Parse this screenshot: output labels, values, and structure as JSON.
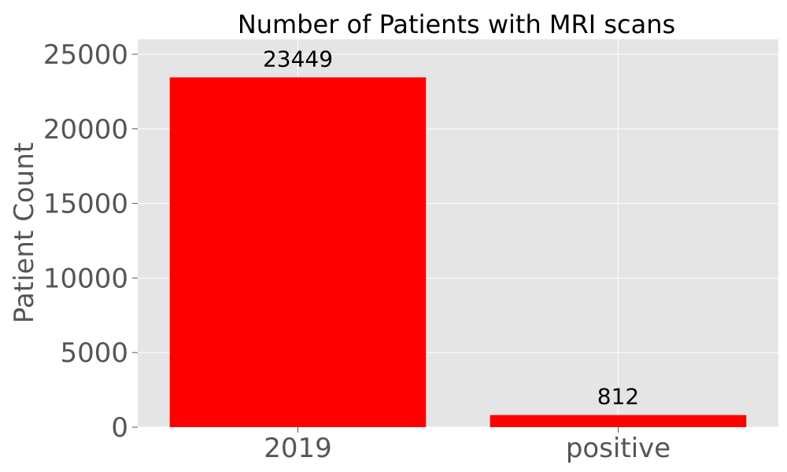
{
  "chart_data": {
    "type": "bar",
    "title": "Number of Patients with MRI scans",
    "xlabel": "",
    "ylabel": "Patient Count",
    "categories": [
      "2019",
      "positive"
    ],
    "values": [
      23449,
      812
    ],
    "data_labels": [
      "23449",
      "812"
    ],
    "ylim": [
      0,
      26000
    ],
    "yticks": [
      0,
      5000,
      10000,
      15000,
      20000,
      25000
    ],
    "ytick_labels": [
      "0",
      "5000",
      "10000",
      "15000",
      "20000",
      "25000"
    ],
    "grid": true,
    "legend": "none",
    "colors": {
      "bar": "#ff0000",
      "plot_background": "#e5e5e5",
      "grid": "#ffffff"
    }
  }
}
